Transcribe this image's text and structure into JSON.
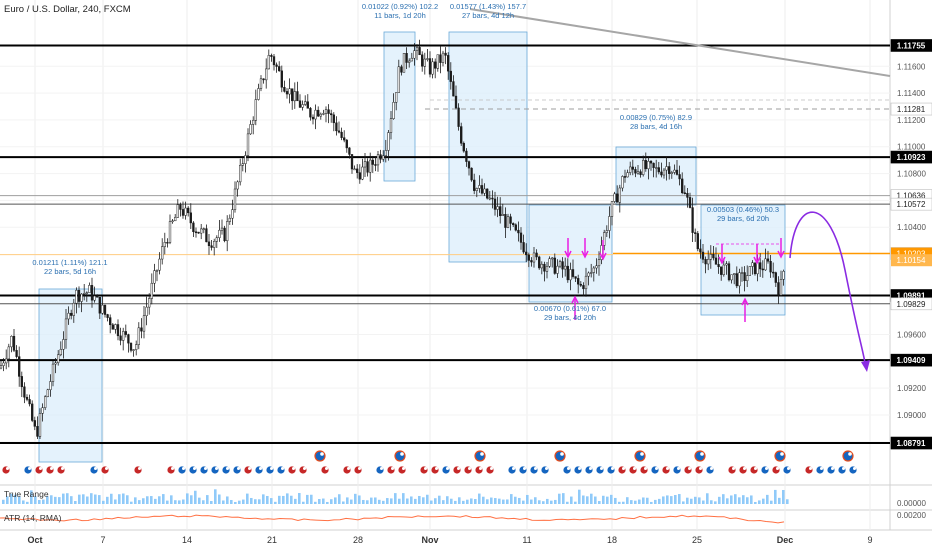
{
  "header": {
    "symbol_title": "Euro / U.S. Dollar, 240, FXCM"
  },
  "chart_data": {
    "type": "candlestick",
    "instrument": "EURUSD",
    "timeframe": "240",
    "ylim": [
      1.0859,
      1.1193
    ],
    "horizontal_levels": [
      {
        "label": "1.11755",
        "value": 1.11755,
        "style": "solid-thick",
        "color": "#000000"
      },
      {
        "label": "1.11281",
        "value": 1.11281,
        "style": "dashed",
        "color": "#9e9e9e"
      },
      {
        "label": "1.10923",
        "value": 1.10923,
        "style": "solid-thick",
        "color": "#000000"
      },
      {
        "label": "1.10636",
        "value": 1.10636,
        "style": "solid-thin",
        "color": "#9e9e9e"
      },
      {
        "label": "1.10572",
        "value": 1.10572,
        "style": "solid-thin",
        "color": "#555555"
      },
      {
        "label": "1.10204",
        "value": 1.10204,
        "style": "solid-orange",
        "color": "#ff9800"
      },
      {
        "label": "1.09891",
        "value": 1.09891,
        "style": "solid-thick",
        "color": "#000000"
      },
      {
        "label": "1.09829",
        "value": 1.09829,
        "style": "solid-thin",
        "color": "#555555"
      },
      {
        "label": "1.09409",
        "value": 1.09409,
        "style": "solid-thick",
        "color": "#000000"
      },
      {
        "label": "1.08791",
        "value": 1.08791,
        "style": "solid-thick",
        "color": "#000000"
      }
    ],
    "price_badges": [
      {
        "label": "1.10203",
        "value": 1.10203,
        "color": "#ff9800"
      },
      {
        "label": "1.10154",
        "value": 1.10154,
        "color": "#ffb74d"
      }
    ],
    "y_ticks": [
      "1.11600",
      "1.11400",
      "1.11200",
      "1.11000",
      "1.10800",
      "1.10600",
      "1.10400",
      "1.09600",
      "1.09200",
      "1.09000",
      "1.08800"
    ],
    "x_ticks": [
      "Oct",
      "7",
      "14",
      "21",
      "28",
      "Nov",
      "11",
      "18",
      "25",
      "Dec",
      "9"
    ],
    "range_boxes": [
      {
        "line1": "0.01211 (1.11%) 121.1",
        "line2": "22 bars, 5d 16h"
      },
      {
        "line1": "0.01022 (0.92%) 102.2",
        "line2": "11 bars, 1d 20h"
      },
      {
        "line1": "0.01577 (1.43%) 157.7",
        "line2": "27 bars, 4d 12h"
      },
      {
        "line1": "0.00670 (0.61%) 67.0",
        "line2": "29 bars, 4d 20h"
      },
      {
        "line1": "0.00829 (0.75%) 82.9",
        "line2": "28 bars, 4d 16h"
      },
      {
        "line1": "0.00503 (0.46%) 50.3",
        "line2": "29 bars, 6d 20h"
      }
    ],
    "indicators": [
      {
        "name": "True Range",
        "y_tick": "0.00000"
      },
      {
        "name": "ATR (14, RMA)",
        "y_tick": "0.00200"
      }
    ],
    "colors": {
      "candle": "#1a1a1a",
      "box_fill": "#dbeefb",
      "box_stroke": "#6aa9d8",
      "arrow": "#e91ee3",
      "projection": "#8a2be2",
      "trendline": "#a6a6a6"
    }
  }
}
